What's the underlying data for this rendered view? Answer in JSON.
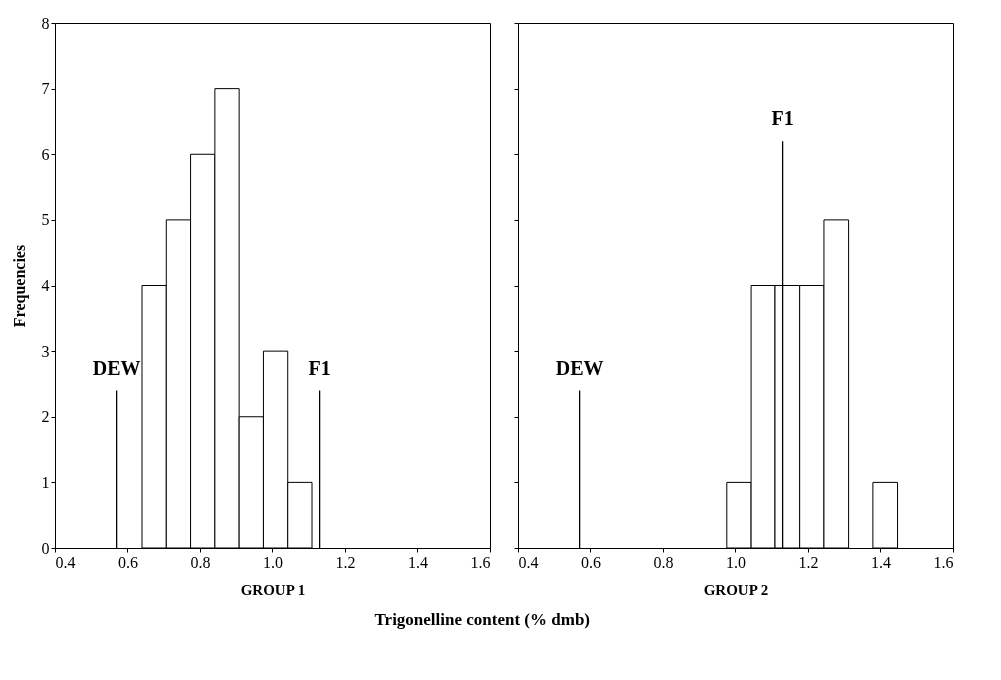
{
  "chart_data": [
    {
      "type": "histogram",
      "xlabel": "GROUP 1",
      "ylabel": "Frequencies",
      "color": "#ffffff",
      "bins": [
        0.64,
        0.707,
        0.774,
        0.841,
        0.908,
        0.975,
        1.042,
        1.109
      ],
      "values": [
        4,
        5,
        6,
        7,
        2,
        3,
        1
      ],
      "xlim": [
        0.4,
        1.6
      ],
      "xticks": [
        0.4,
        0.6,
        0.8,
        {
          "value": 1,
          "label": "1.0"
        },
        1.2,
        1.4,
        1.6
      ],
      "ylim": [
        0,
        8
      ],
      "yticks": [
        0,
        1,
        2,
        3,
        4,
        5,
        6,
        7,
        8
      ],
      "ref_lines": [
        {
          "axis": "x",
          "value": 0.57,
          "label": "DEW"
        },
        {
          "axis": "x",
          "value": 1.13,
          "label": "F1"
        }
      ],
      "annotations": [
        "Trigonelline content (% dmb)"
      ]
    },
    {
      "type": "histogram",
      "xlabel": "GROUP 2",
      "color": "#ffffff",
      "bins": [
        0.976,
        1.043,
        1.109,
        1.177,
        1.244,
        1.312,
        1.379,
        1.447
      ],
      "values": [
        1,
        4,
        4,
        4,
        5,
        0,
        1
      ],
      "xlim": [
        0.4,
        1.6
      ],
      "xticks": [
        0.4,
        0.6,
        0.8,
        {
          "value": 1,
          "label": "1.0"
        },
        1.2,
        1.4,
        1.6
      ],
      "ylim": [
        0,
        8
      ],
      "yticks": [
        0,
        1,
        2,
        3,
        4,
        5,
        6,
        7,
        8
      ],
      "tick_labels": "x",
      "ref_lines": [
        {
          "axis": "x",
          "value": 0.57,
          "label": "DEW"
        },
        {
          "axis": "x",
          "value": 1.13,
          "label": "F1"
        }
      ]
    }
  ]
}
